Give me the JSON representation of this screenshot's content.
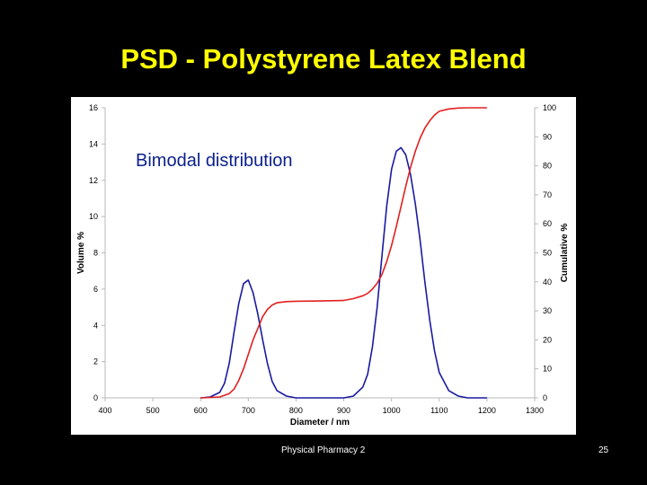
{
  "slide": {
    "title": "PSD - Polystyrene Latex Blend",
    "footer_text": "Physical Pharmacy 2",
    "page_number": "25"
  },
  "colors": {
    "background": "#000000",
    "title": "#ffff00",
    "volume_series": "#1a1aa0",
    "cumulative_series": "#e02020",
    "annotation": "#0b1f8c"
  },
  "chart_data": {
    "type": "line",
    "title": "",
    "annotation": "Bimodal distribution",
    "xlabel": "Diameter / nm",
    "ylabel": "Volume %",
    "y2label": "Cumulative %",
    "xlim": [
      400,
      1300
    ],
    "ylim": [
      0,
      16
    ],
    "y2lim": [
      0,
      100
    ],
    "x_ticks": [
      400,
      500,
      600,
      700,
      800,
      900,
      1000,
      1100,
      1200,
      1300
    ],
    "y_ticks": [
      0,
      2,
      4,
      6,
      8,
      10,
      12,
      14,
      16
    ],
    "y2_ticks": [
      0,
      10,
      20,
      30,
      40,
      50,
      60,
      70,
      80,
      90,
      100
    ],
    "grid": false,
    "series": [
      {
        "axis": "left",
        "x": [
          600,
          620,
          640,
          650,
          660,
          670,
          680,
          690,
          700,
          710,
          720,
          730,
          740,
          750,
          760,
          780,
          800,
          850,
          900,
          920,
          940,
          950,
          960,
          970,
          980,
          990,
          1000,
          1010,
          1020,
          1030,
          1040,
          1050,
          1060,
          1070,
          1080,
          1090,
          1100,
          1120,
          1140,
          1160,
          1180,
          1200
        ],
        "y": [
          0,
          0.05,
          0.3,
          0.8,
          1.9,
          3.6,
          5.2,
          6.3,
          6.5,
          5.8,
          4.6,
          3.2,
          1.9,
          0.9,
          0.4,
          0.1,
          0,
          0,
          0,
          0.1,
          0.6,
          1.3,
          2.8,
          5.0,
          7.8,
          10.6,
          12.6,
          13.6,
          13.8,
          13.4,
          12.3,
          10.7,
          8.7,
          6.4,
          4.3,
          2.6,
          1.4,
          0.4,
          0.1,
          0,
          0,
          0
        ]
      },
      {
        "axis": "right",
        "x": [
          600,
          640,
          660,
          670,
          680,
          690,
          700,
          710,
          720,
          730,
          740,
          750,
          760,
          780,
          800,
          850,
          900,
          920,
          940,
          950,
          960,
          970,
          980,
          990,
          1000,
          1010,
          1020,
          1030,
          1040,
          1050,
          1060,
          1070,
          1080,
          1090,
          1100,
          1120,
          1140,
          1160,
          1200
        ],
        "y": [
          0,
          0.3,
          1.5,
          3,
          6,
          10,
          15,
          20,
          24,
          28,
          30.5,
          32,
          32.8,
          33.2,
          33.3,
          33.4,
          33.6,
          34.2,
          35.2,
          36,
          37.5,
          39.5,
          42.5,
          47,
          52.5,
          59,
          66,
          73,
          79.5,
          85,
          89.5,
          93,
          95.5,
          97.5,
          98.8,
          99.6,
          99.9,
          100,
          100
        ]
      }
    ]
  }
}
